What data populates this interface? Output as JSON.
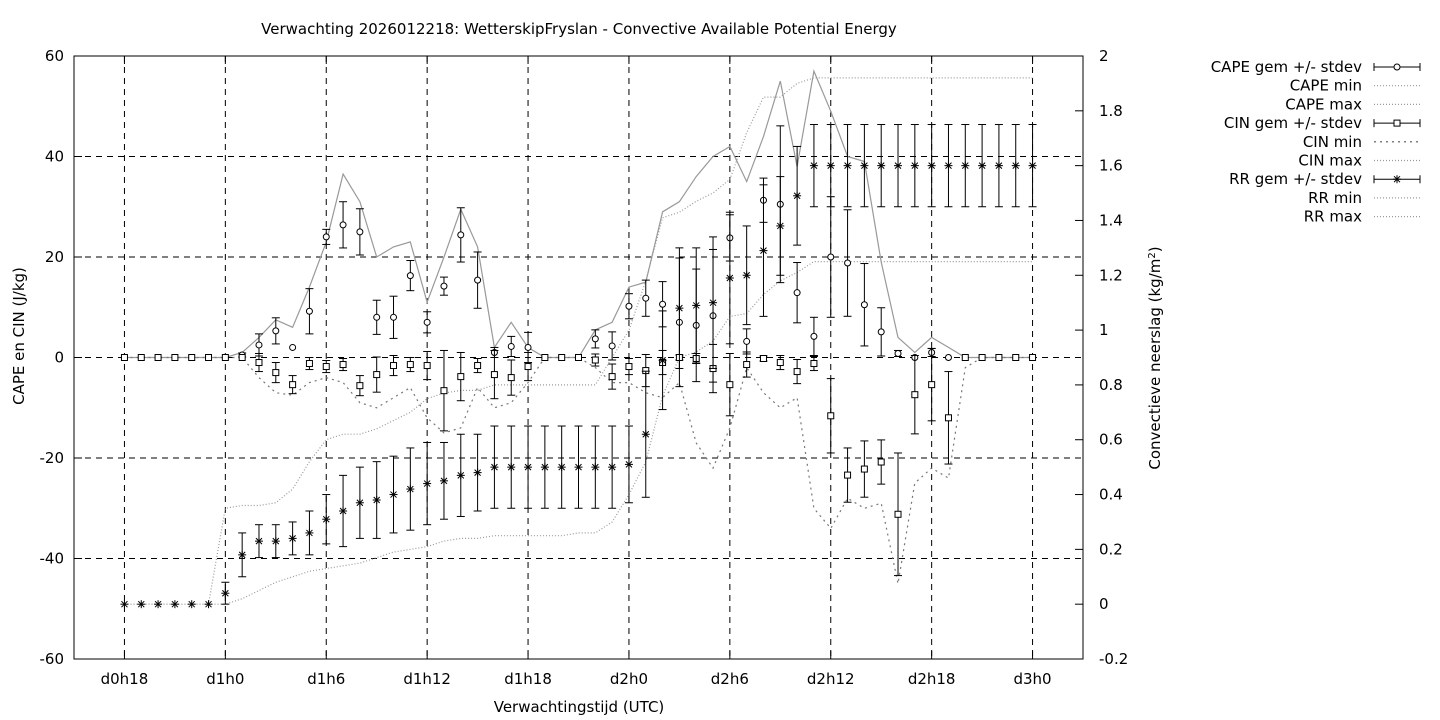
{
  "chart_data": {
    "type": "line",
    "title": "Verwachting 2026012218: WetterskipFryslan - Convective Available Potential Energy",
    "xlabel": "Verwachtingstijd (UTC)",
    "ylabel": "CAPE en CIN (J/kg)",
    "y2label_main": "Convectieve neerslag (kg/m",
    "y2label_sup": "2",
    "y2label_end": ")",
    "grid": true,
    "x_unit": "hours after d0h0",
    "xlim": [
      15,
      75
    ],
    "ylim": [
      -60,
      60
    ],
    "y2lim": [
      -0.2,
      2
    ],
    "x_ticks": [
      {
        "x": 18,
        "label": "d0h18"
      },
      {
        "x": 24,
        "label": "d1h0"
      },
      {
        "x": 30,
        "label": "d1h6"
      },
      {
        "x": 36,
        "label": "d1h12"
      },
      {
        "x": 42,
        "label": "d1h18"
      },
      {
        "x": 48,
        "label": "d2h0"
      },
      {
        "x": 54,
        "label": "d2h6"
      },
      {
        "x": 60,
        "label": "d2h12"
      },
      {
        "x": 66,
        "label": "d2h18"
      },
      {
        "x": 72,
        "label": "d3h0"
      }
    ],
    "y_ticks": [
      "60",
      "40",
      "20",
      "0",
      "-20",
      "-40",
      "-60"
    ],
    "y_tick_values": [
      60,
      40,
      20,
      0,
      -20,
      -40,
      -60
    ],
    "y2_ticks": [
      "2",
      "1.8",
      "1.6",
      "1.4",
      "1.2",
      "1",
      "0.8",
      "0.6",
      "0.4",
      "0.2",
      "0",
      "-0.2"
    ],
    "y2_tick_values": [
      2,
      1.8,
      1.6,
      1.4,
      1.2,
      1,
      0.8,
      0.6,
      0.4,
      0.2,
      0,
      -0.2
    ],
    "legend": {
      "position": "outside-top-right",
      "entries": [
        "CAPE gem +/- stdev",
        "CAPE min",
        "CAPE max",
        "CIN gem +/- stdev",
        "CIN min",
        "CIN max",
        "RR gem +/- stdev",
        "RR min",
        "RR max"
      ]
    },
    "cape": {
      "x": [
        18,
        19,
        20,
        21,
        22,
        23,
        24,
        25,
        26,
        27,
        28,
        29,
        30,
        31,
        32,
        33,
        34,
        35,
        36,
        37,
        38,
        39,
        40,
        41,
        42,
        43,
        44,
        45,
        46,
        47,
        48,
        49,
        50,
        51,
        52,
        53,
        54,
        55,
        56,
        57,
        58,
        59,
        60,
        61,
        62,
        63,
        64,
        65,
        66,
        67,
        68,
        69,
        70,
        71,
        72
      ],
      "mean": [
        0,
        0,
        0,
        0,
        0,
        0,
        0,
        0.5,
        2.5,
        5.3,
        2,
        9.2,
        24,
        26.4,
        25,
        8,
        8,
        16.3,
        7,
        14.2,
        24.4,
        15.4,
        1,
        2.2,
        2,
        0,
        0,
        0,
        3.7,
        2.3,
        10.2,
        11.8,
        10.6,
        7,
        6.4,
        8.3,
        23.8,
        3.2,
        31.3,
        30.5,
        12.9,
        4.2,
        20,
        18.8,
        10.5,
        5.1,
        0.8,
        0,
        1,
        0,
        0,
        0,
        0,
        0,
        0
      ],
      "stdev": [
        0,
        0,
        0,
        0,
        0,
        0,
        0,
        0.4,
        2.2,
        2.6,
        0,
        4.5,
        1.5,
        4.6,
        4.6,
        3.4,
        4.2,
        3,
        2.1,
        1.8,
        5.4,
        5.6,
        1,
        2,
        3,
        0,
        0,
        0,
        1.8,
        2.8,
        2.5,
        3.6,
        4.5,
        12.8,
        11.2,
        13.2,
        4.6,
        2.5,
        4.4,
        15.6,
        6,
        3.8,
        12,
        10.6,
        8.2,
        4.8,
        0.6,
        0,
        0.8,
        0,
        0,
        0,
        0,
        0,
        0
      ],
      "max": [
        0,
        0,
        0,
        0,
        0,
        0,
        0,
        1,
        4,
        7.5,
        6,
        14,
        23,
        36.5,
        31,
        20,
        22,
        23,
        11,
        20,
        29.5,
        22,
        2,
        7,
        2,
        0,
        0,
        0,
        5.5,
        7,
        14,
        15,
        29,
        31,
        36,
        40,
        42,
        35,
        44,
        55,
        38,
        57,
        49,
        40,
        39,
        19,
        4,
        1,
        4,
        2,
        0,
        0,
        0,
        0,
        0
      ],
      "min": [
        0,
        0,
        0,
        0,
        0,
        0,
        0,
        0,
        0,
        0,
        0,
        0,
        0,
        0,
        0,
        0,
        0,
        0,
        0,
        0,
        0,
        0,
        0,
        0,
        0,
        0,
        0,
        0,
        0,
        0,
        0,
        0,
        0,
        0,
        0,
        0,
        0,
        0,
        0,
        0,
        0,
        0,
        0,
        0,
        0,
        0,
        0,
        0,
        0,
        0,
        0,
        0,
        0,
        0,
        0
      ]
    },
    "cin": {
      "x": [
        18,
        19,
        20,
        21,
        22,
        23,
        24,
        25,
        26,
        27,
        28,
        29,
        30,
        31,
        32,
        33,
        34,
        35,
        36,
        37,
        38,
        39,
        40,
        41,
        42,
        43,
        44,
        45,
        46,
        47,
        48,
        49,
        50,
        51,
        52,
        53,
        54,
        55,
        56,
        57,
        58,
        59,
        60,
        61,
        62,
        63,
        64,
        65,
        66,
        67,
        68,
        69,
        70,
        71,
        72
      ],
      "mean": [
        0,
        0,
        0,
        0,
        0,
        0,
        0,
        0,
        -1,
        -3,
        -5.4,
        -1.2,
        -1.8,
        -1.4,
        -5.6,
        -3.4,
        -1.6,
        -1.4,
        -1.6,
        -6.6,
        -3.8,
        -1.6,
        -3.4,
        -4,
        -1.8,
        0,
        0,
        0,
        -0.5,
        -3.8,
        -1.8,
        -2.6,
        -1,
        0,
        -0.2,
        -2.2,
        -5.4,
        -1.4,
        -0.2,
        -1,
        -2.8,
        -1.2,
        -11.6,
        -23.4,
        -22.2,
        -20.8,
        -31.2,
        -7.4,
        -5.4,
        -12,
        0,
        0,
        0,
        0,
        0
      ],
      "stdev": [
        0,
        0,
        0,
        0,
        0,
        0,
        0,
        0,
        1.8,
        2,
        1.8,
        1.2,
        1.2,
        1.2,
        2,
        3.5,
        2,
        1.4,
        2.8,
        8,
        4.8,
        1.4,
        4.8,
        3.5,
        2.8,
        0,
        0,
        0,
        1.2,
        2.5,
        1.6,
        3.2,
        2.4,
        0.5,
        1,
        4.8,
        6.2,
        2.5,
        0.5,
        1.4,
        2.4,
        1.4,
        7.4,
        5.4,
        5.6,
        4.4,
        12.2,
        7.8,
        7.2,
        9.2,
        0,
        0,
        0,
        0,
        0
      ],
      "min": [
        0,
        0,
        0,
        0,
        0,
        0,
        0,
        0,
        -4,
        -7,
        -7.5,
        -5,
        -4,
        -5,
        -9,
        -10,
        -8,
        -6,
        -12,
        -15,
        -14,
        -6,
        -10,
        -9,
        -5,
        0,
        0,
        0,
        -2,
        -5,
        -5,
        -7,
        -8,
        -5,
        -17,
        -22,
        -14,
        -2,
        -7,
        -10,
        -8,
        -30,
        -34,
        -28,
        -30,
        -29,
        -45,
        -25,
        -22,
        -24,
        -2,
        0,
        0,
        0,
        0
      ],
      "max": [
        0,
        0,
        0,
        0,
        0,
        0,
        0,
        0,
        0,
        0,
        0,
        0,
        0,
        0,
        0,
        0,
        0,
        0,
        0,
        0,
        0,
        0,
        0,
        0,
        0,
        0,
        0,
        0,
        0,
        0,
        0,
        0,
        0,
        0,
        0,
        0,
        0,
        0,
        0,
        0,
        0,
        0,
        0,
        0,
        0,
        0,
        0,
        0,
        0,
        0,
        0,
        0,
        0,
        0,
        0
      ]
    },
    "rr": {
      "x": [
        18,
        19,
        20,
        21,
        22,
        23,
        24,
        25,
        26,
        27,
        28,
        29,
        30,
        31,
        32,
        33,
        34,
        35,
        36,
        37,
        38,
        39,
        40,
        41,
        42,
        43,
        44,
        45,
        46,
        47,
        48,
        49,
        50,
        51,
        52,
        53,
        54,
        55,
        56,
        57,
        58,
        59,
        60,
        61,
        62,
        63,
        64,
        65,
        66,
        67,
        68,
        69,
        70,
        71,
        72
      ],
      "mean": [
        0,
        0,
        0,
        0,
        0,
        0,
        0.04,
        0.18,
        0.23,
        0.23,
        0.24,
        0.26,
        0.31,
        0.34,
        0.37,
        0.38,
        0.4,
        0.42,
        0.44,
        0.45,
        0.47,
        0.48,
        0.5,
        0.5,
        0.5,
        0.5,
        0.5,
        0.5,
        0.5,
        0.5,
        0.51,
        0.62,
        0.89,
        1.08,
        1.09,
        1.1,
        1.19,
        1.2,
        1.29,
        1.38,
        1.49,
        1.6,
        1.6,
        1.6,
        1.6,
        1.6,
        1.6,
        1.6,
        1.6,
        1.6,
        1.6,
        1.6,
        1.6,
        1.6,
        1.6
      ],
      "stdev": [
        0,
        0,
        0,
        0,
        0,
        0,
        0.04,
        0.08,
        0.06,
        0.06,
        0.06,
        0.08,
        0.09,
        0.13,
        0.13,
        0.14,
        0.14,
        0.15,
        0.15,
        0.14,
        0.15,
        0.14,
        0.15,
        0.15,
        0.15,
        0.15,
        0.15,
        0.15,
        0.15,
        0.15,
        0.14,
        0.23,
        0.18,
        0.22,
        0.21,
        0.24,
        0.24,
        0.18,
        0.24,
        0.18,
        0.18,
        0.15,
        0.15,
        0.15,
        0.15,
        0.15,
        0.15,
        0.15,
        0.15,
        0.15,
        0.15,
        0.15,
        0.15,
        0.15,
        0.15
      ],
      "max": [
        0,
        0,
        0,
        0,
        0,
        0,
        0.35,
        0.36,
        0.36,
        0.37,
        0.42,
        0.52,
        0.6,
        0.62,
        0.62,
        0.64,
        0.67,
        0.7,
        0.75,
        0.77,
        0.78,
        0.78,
        0.8,
        0.8,
        0.8,
        0.8,
        0.8,
        0.8,
        0.8,
        0.9,
        1.0,
        1.18,
        1.41,
        1.43,
        1.47,
        1.5,
        1.55,
        1.72,
        1.85,
        1.85,
        1.9,
        1.92,
        1.92,
        1.92,
        1.92,
        1.92,
        1.92,
        1.92,
        1.92,
        1.92,
        1.92,
        1.92,
        1.92,
        1.92,
        1.92
      ],
      "min": [
        0,
        0,
        0,
        0,
        0,
        0,
        0,
        0.02,
        0.05,
        0.08,
        0.1,
        0.12,
        0.13,
        0.14,
        0.15,
        0.17,
        0.19,
        0.2,
        0.21,
        0.23,
        0.24,
        0.24,
        0.25,
        0.25,
        0.25,
        0.25,
        0.25,
        0.26,
        0.26,
        0.3,
        0.4,
        0.52,
        0.76,
        0.9,
        0.92,
        0.96,
        1.05,
        1.06,
        1.13,
        1.18,
        1.21,
        1.25,
        1.25,
        1.25,
        1.25,
        1.25,
        1.25,
        1.25,
        1.25,
        1.25,
        1.25,
        1.25,
        1.25,
        1.25,
        1.25
      ]
    }
  }
}
